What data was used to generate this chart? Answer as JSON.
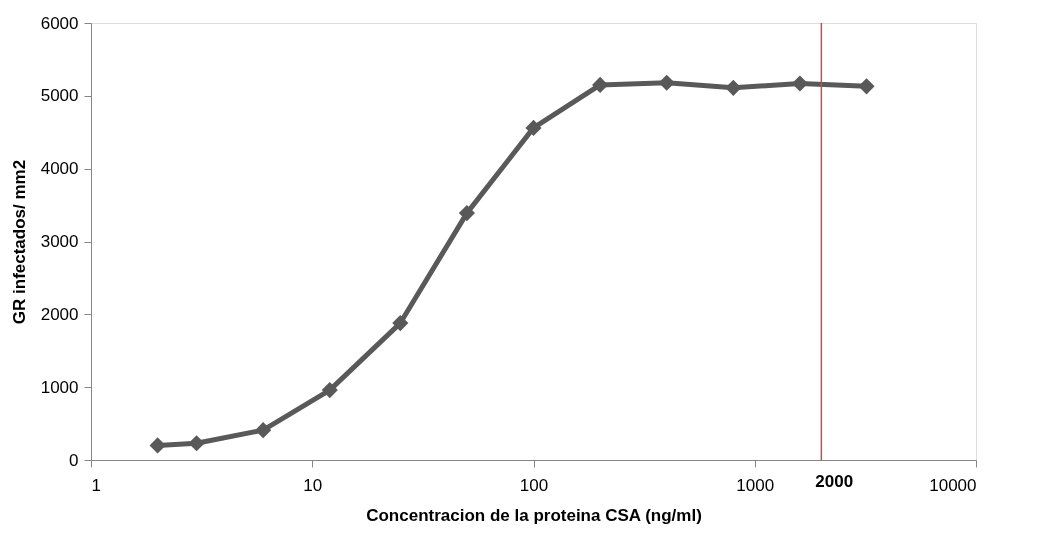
{
  "chart_data": {
    "type": "line",
    "xlabel": "Concentracion de la proteina CSA (ng/ml)",
    "ylabel": "GR infectados/ mm2",
    "x": [
      2,
      3,
      6,
      12,
      25,
      50,
      100,
      200,
      400,
      800,
      1600,
      3200
    ],
    "series": [
      {
        "color": "#595959",
        "values": [
          200,
          230,
          410,
          960,
          1880,
          3390,
          4560,
          5150,
          5180,
          5110,
          5170,
          5130
        ]
      }
    ],
    "log": "x",
    "xlim": [
      1,
      10000
    ],
    "xticks": [
      1,
      10,
      100,
      1000,
      10000
    ],
    "ylim": [
      0,
      6000
    ],
    "yticks": [
      0,
      1000,
      2000,
      3000,
      4000,
      5000,
      6000
    ],
    "grid": false,
    "marker": "diamond",
    "line_style": "solid",
    "ref_lines": [
      {
        "axis": "x",
        "value": 2000,
        "label": "2000",
        "color": "#c0504d"
      }
    ]
  }
}
